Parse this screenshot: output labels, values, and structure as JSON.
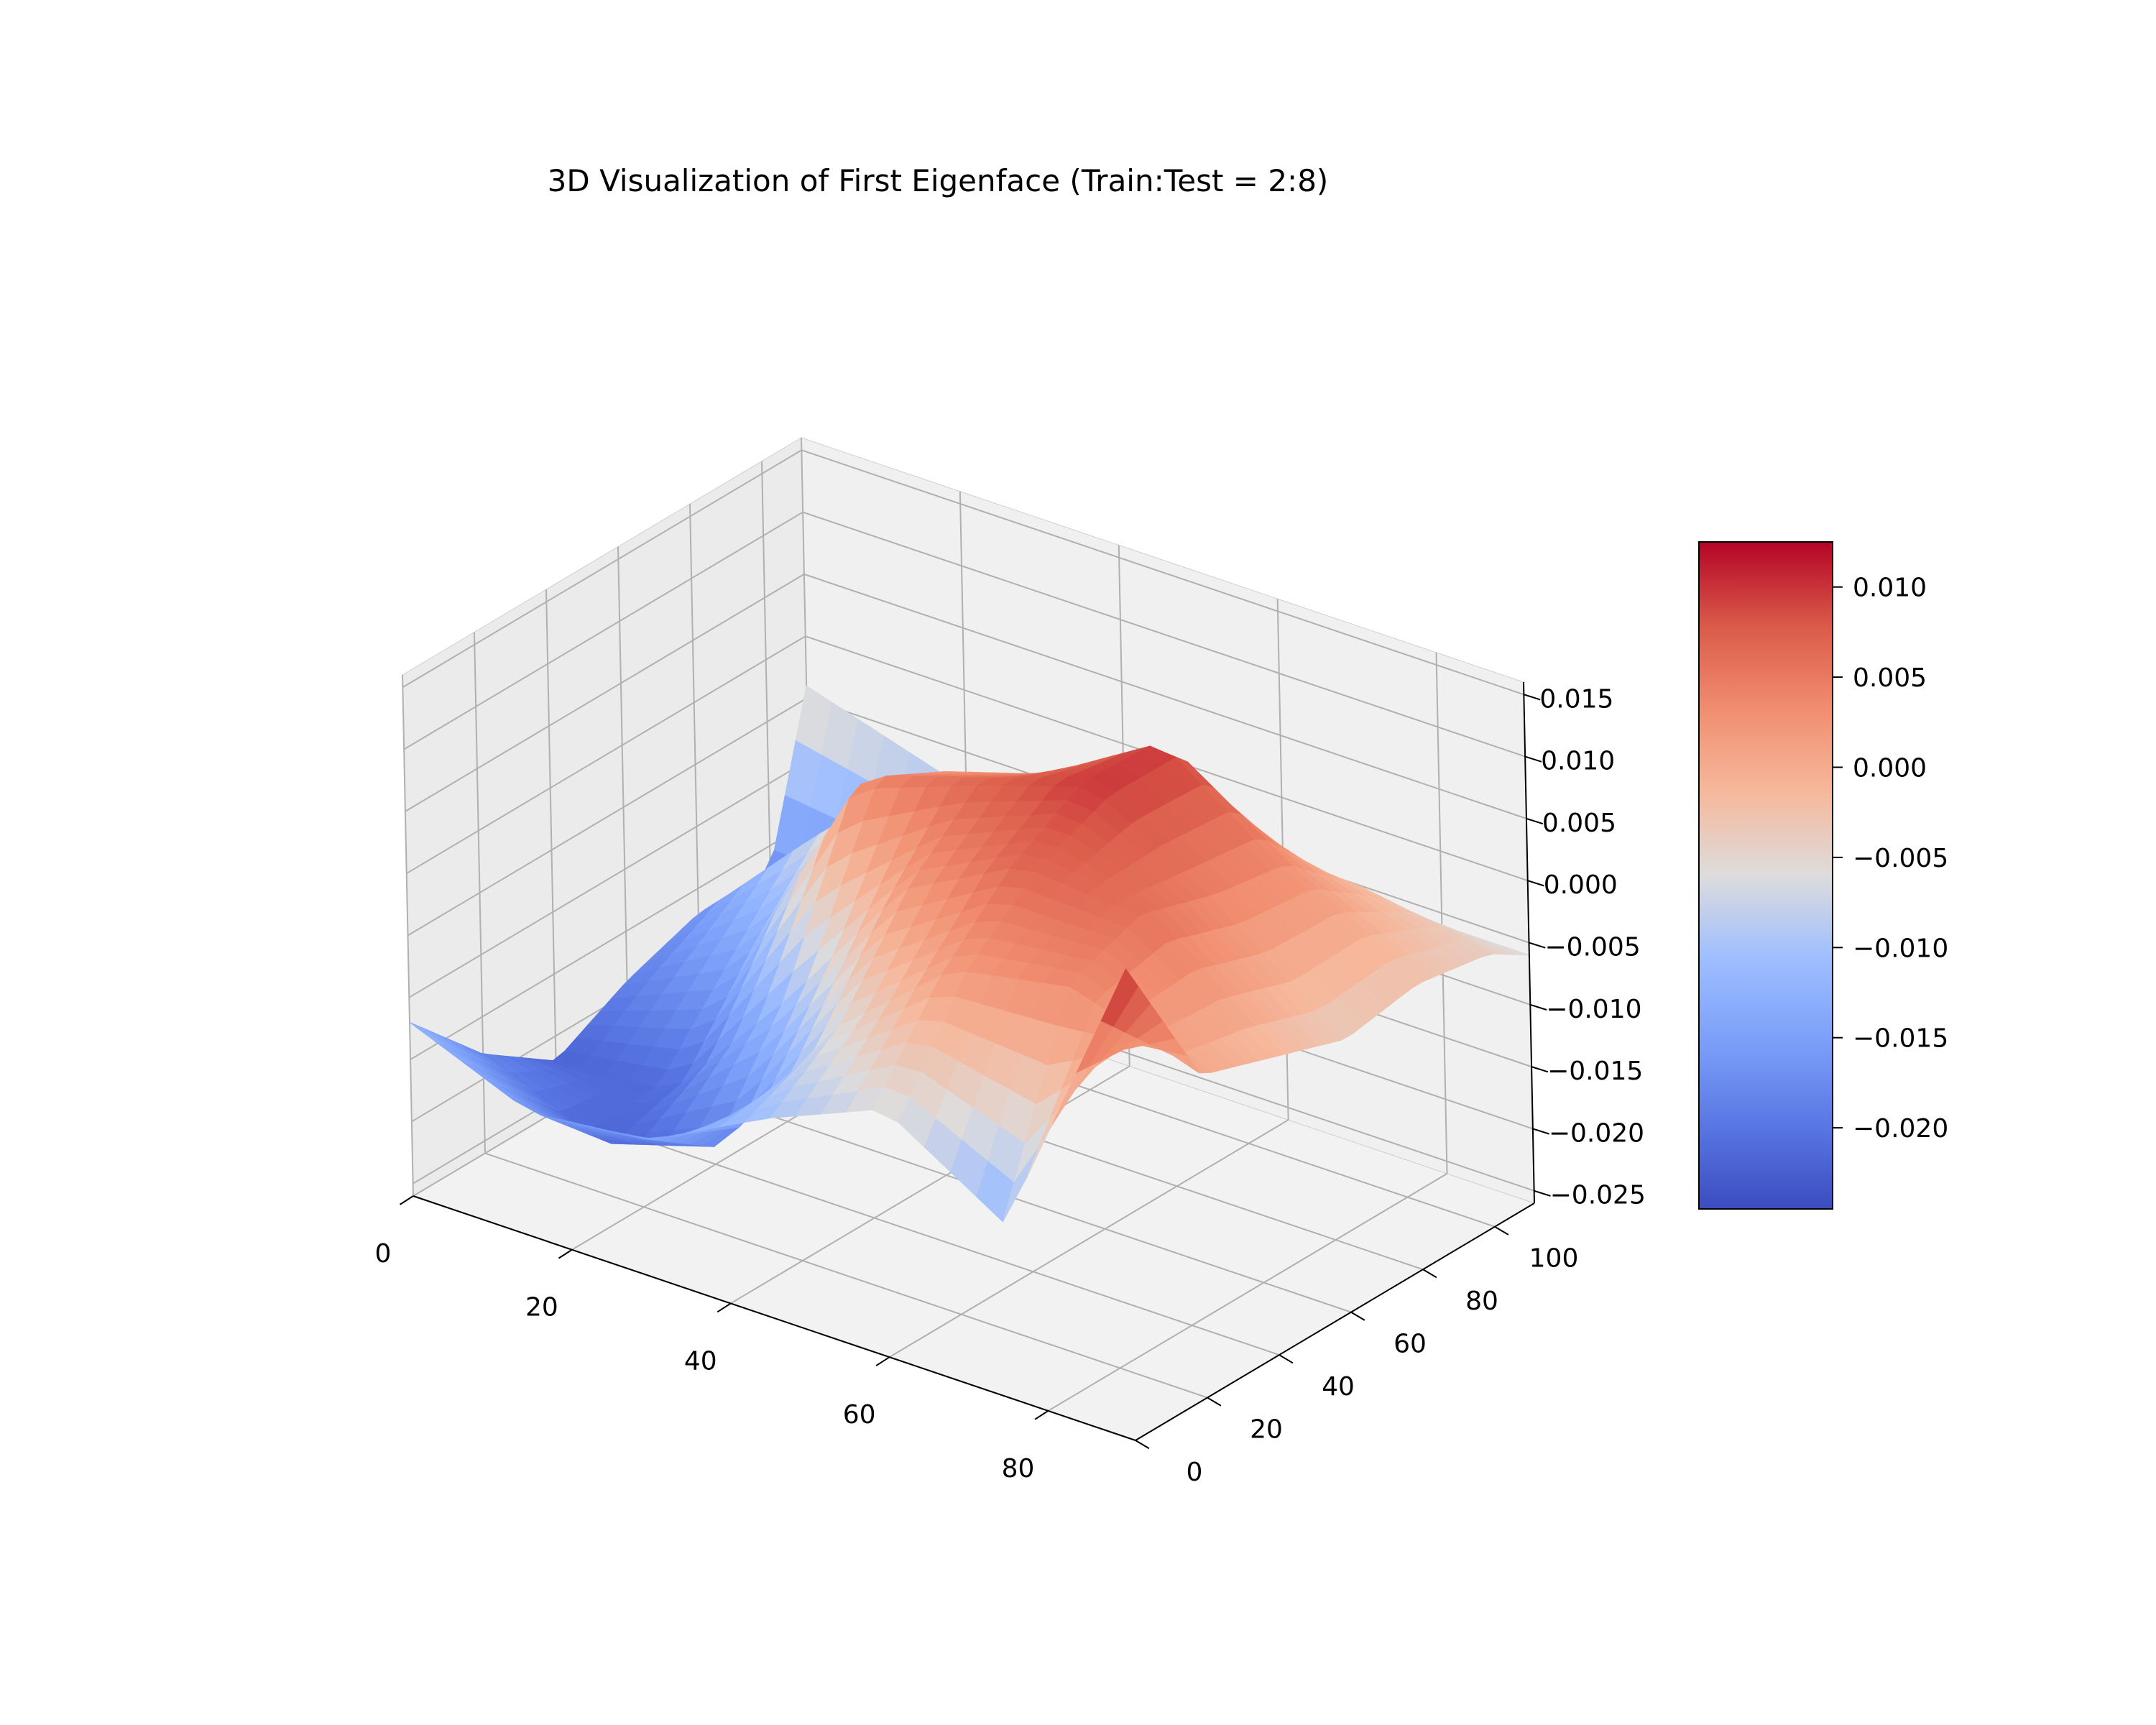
{
  "chart_data": {
    "type": "surface",
    "title": "3D Visualization of First Eigenface (Train:Test = 2:8)",
    "colormap": "coolwarm",
    "grid": true,
    "x_axis": {
      "label": "",
      "range": [
        0,
        91
      ],
      "ticks": [
        "0",
        "20",
        "40",
        "60",
        "80"
      ],
      "tick_values": [
        0,
        20,
        40,
        60,
        80
      ]
    },
    "y_axis": {
      "label": "",
      "range": [
        0,
        111
      ],
      "ticks": [
        "0",
        "20",
        "40",
        "60",
        "80",
        "100"
      ],
      "tick_values": [
        0,
        20,
        40,
        60,
        80,
        100
      ]
    },
    "z_axis": {
      "label": "",
      "range": [
        -0.026,
        0.016
      ],
      "ticks": [
        "−0.025",
        "−0.020",
        "−0.015",
        "−0.010",
        "−0.005",
        "0.000",
        "0.005",
        "0.010",
        "0.015"
      ],
      "tick_values": [
        -0.025,
        -0.02,
        -0.015,
        -0.01,
        -0.005,
        0.0,
        0.005,
        0.01,
        0.015
      ]
    },
    "colorbar": {
      "range": [
        -0.0245,
        0.0125
      ],
      "placement": "right",
      "ticks": [
        "−0.020",
        "−0.015",
        "−0.010",
        "−0.005",
        "0.000",
        "0.005",
        "0.010"
      ],
      "tick_values": [
        -0.02,
        -0.015,
        -0.01,
        -0.005,
        0.0,
        0.005,
        0.01
      ]
    },
    "surface_grid": {
      "x": [
        0,
        15,
        30,
        45,
        60,
        75,
        91
      ],
      "y": [
        0,
        20,
        40,
        60,
        80,
        100,
        111
      ],
      "z": [
        [
          -0.012,
          -0.016,
          -0.015,
          -0.01,
          -0.006,
          -0.012,
          0.012
        ],
        [
          -0.018,
          -0.022,
          -0.019,
          -0.006,
          0.002,
          0.004,
          0.0
        ],
        [
          -0.022,
          -0.021,
          -0.01,
          0.002,
          0.007,
          0.006,
          -0.002
        ],
        [
          -0.019,
          -0.014,
          0.004,
          0.007,
          0.01,
          0.004,
          -0.004
        ],
        [
          -0.017,
          -0.007,
          0.001,
          0.004,
          0.01,
          0.003,
          -0.003
        ],
        [
          -0.017,
          -0.017,
          -0.01,
          -0.006,
          -0.002,
          -0.002,
          -0.004
        ],
        [
          -0.004,
          -0.007,
          -0.01,
          -0.008,
          -0.007,
          -0.006,
          -0.006
        ]
      ]
    }
  }
}
